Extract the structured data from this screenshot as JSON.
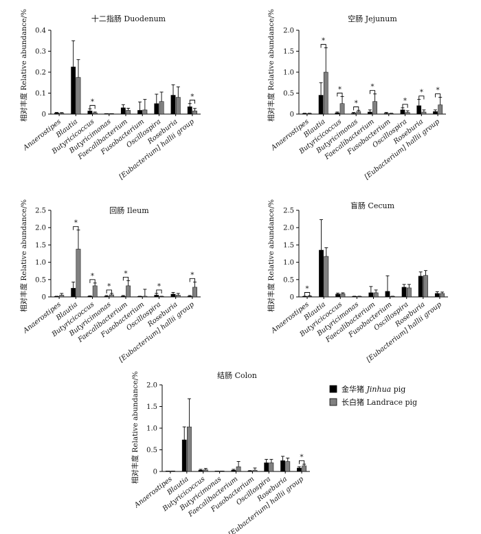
{
  "categories": [
    "Anaerostipes",
    "Blautia",
    "Butyricicoccus",
    "Butyricimonas",
    "Faecalibacterium",
    "Fusobacterium",
    "Oscillospira",
    "Roseburia",
    "[Eubacterium] hallii group"
  ],
  "ylabel": "相对丰度  Relative abundance/%",
  "legend": {
    "jinhua": {
      "cn": "金华猪 ",
      "en": "Jinhua",
      "suffix": " pig",
      "color": "#000000"
    },
    "landrace": {
      "cn": "长白猪  ",
      "en": "Landrace pig",
      "color": "#808080"
    }
  },
  "chart_data": [
    {
      "type": "bar",
      "title": "十二指肠  Duodenum",
      "ylim": [
        0,
        0.4
      ],
      "yticks": [
        "0",
        "0.1",
        "0.2",
        "0.3",
        "0.4"
      ],
      "series": [
        {
          "name": "金华猪 Jinhua pig",
          "values": [
            0.005,
            0.225,
            0.015,
            0.001,
            0.03,
            0.018,
            0.05,
            0.09,
            0.035
          ],
          "errors": [
            0.003,
            0.125,
            0.01,
            0.001,
            0.015,
            0.04,
            0.045,
            0.05,
            0.015
          ]
        },
        {
          "name": "长白猪 Landrace pig",
          "values": [
            0.004,
            0.175,
            0.006,
            0.001,
            0.018,
            0.02,
            0.06,
            0.08,
            0.015
          ],
          "errors": [
            0.003,
            0.085,
            0.004,
            0.001,
            0.01,
            0.05,
            0.045,
            0.05,
            0.012
          ]
        }
      ],
      "significant": [
        2,
        8
      ]
    },
    {
      "type": "bar",
      "title": "空肠  Jejunum",
      "ylim": [
        0,
        2.0
      ],
      "yticks": [
        "0",
        "0.5",
        "1.0",
        "1.5",
        "2.0"
      ],
      "series": [
        {
          "name": "金华猪 Jinhua pig",
          "values": [
            0.01,
            0.45,
            0.03,
            0.02,
            0.05,
            0.02,
            0.1,
            0.2,
            0.06
          ],
          "errors": [
            0.01,
            0.3,
            0.02,
            0.02,
            0.05,
            0.02,
            0.05,
            0.15,
            0.04
          ]
        },
        {
          "name": "长白猪 Landrace pig",
          "values": [
            0.01,
            1.0,
            0.25,
            0.06,
            0.3,
            0.01,
            0.04,
            0.05,
            0.22
          ],
          "errors": [
            0.01,
            0.58,
            0.17,
            0.03,
            0.18,
            0.01,
            0.04,
            0.05,
            0.18
          ]
        }
      ],
      "significant": [
        1,
        2,
        3,
        4,
        6,
        7,
        8
      ]
    },
    {
      "type": "bar",
      "title": "回肠  Ileum",
      "ylim": [
        0,
        2.5
      ],
      "yticks": [
        "0",
        "0.5",
        "1.0",
        "1.5",
        "2.0",
        "2.5"
      ],
      "series": [
        {
          "name": "金华猪 Jinhua pig",
          "values": [
            0.01,
            0.25,
            0.02,
            0.02,
            0.02,
            0.01,
            0.05,
            0.08,
            0.02
          ],
          "errors": [
            0.01,
            0.18,
            0.01,
            0.02,
            0.02,
            0.01,
            0.05,
            0.05,
            0.02
          ]
        },
        {
          "name": "长白猪 Landrace pig",
          "values": [
            0.05,
            1.38,
            0.32,
            0.06,
            0.32,
            0.02,
            0.01,
            0.05,
            0.28
          ],
          "errors": [
            0.05,
            0.55,
            0.08,
            0.04,
            0.15,
            0.2,
            0.01,
            0.05,
            0.15
          ]
        }
      ],
      "significant": [
        1,
        2,
        3,
        4,
        6,
        8
      ]
    },
    {
      "type": "bar",
      "title": "盲肠  Cecum",
      "ylim": [
        0,
        2.5
      ],
      "yticks": [
        "0",
        "0.5",
        "1.0",
        "1.5",
        "2.0",
        "2.5"
      ],
      "series": [
        {
          "name": "金华猪 Jinhua pig",
          "values": [
            0.01,
            1.35,
            0.08,
            0.01,
            0.12,
            0.16,
            0.28,
            0.6,
            0.1
          ],
          "errors": [
            0.01,
            0.88,
            0.03,
            0.01,
            0.18,
            0.45,
            0.08,
            0.12,
            0.05
          ]
        },
        {
          "name": "长白猪 Landrace pig",
          "values": [
            0.02,
            1.17,
            0.09,
            0.01,
            0.12,
            0.01,
            0.26,
            0.62,
            0.1
          ],
          "errors": [
            0.01,
            0.25,
            0.03,
            0.01,
            0.08,
            0.01,
            0.1,
            0.14,
            0.04
          ]
        }
      ],
      "significant": [
        0
      ]
    },
    {
      "type": "bar",
      "title": "结肠  Colon",
      "ylim": [
        0,
        2.0
      ],
      "yticks": [
        "0",
        "0.5",
        "1.0",
        "1.5",
        "2.0"
      ],
      "series": [
        {
          "name": "金华猪 Jinhua pig",
          "values": [
            0.005,
            0.73,
            0.03,
            0.005,
            0.03,
            0.01,
            0.2,
            0.25,
            0.08
          ],
          "errors": [
            0.003,
            0.3,
            0.02,
            0.003,
            0.02,
            0.01,
            0.08,
            0.1,
            0.03
          ]
        },
        {
          "name": "长白猪 Landrace pig",
          "values": [
            0.005,
            1.03,
            0.04,
            0.005,
            0.11,
            0.03,
            0.2,
            0.23,
            0.13
          ],
          "errors": [
            0.003,
            0.65,
            0.03,
            0.003,
            0.12,
            0.05,
            0.08,
            0.08,
            0.04
          ]
        }
      ],
      "significant": [
        8
      ]
    }
  ]
}
